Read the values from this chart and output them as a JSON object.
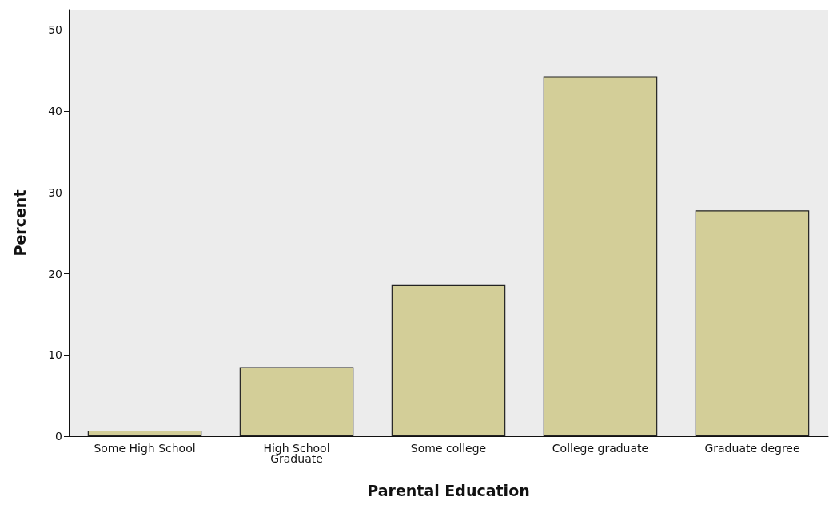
{
  "chart_data": {
    "type": "bar",
    "xlabel": "Parental Education",
    "ylabel": "Percent",
    "categories": [
      "Some High School",
      "High School\nGraduate",
      "Some college",
      "College graduate",
      "Graduate degree"
    ],
    "values": [
      0.7,
      8.5,
      18.6,
      44.3,
      27.8
    ],
    "color": "#d3ce98",
    "ylim": [
      0,
      52.5
    ],
    "yticks": [
      0,
      10,
      20,
      30,
      40,
      50
    ],
    "grid": false
  }
}
